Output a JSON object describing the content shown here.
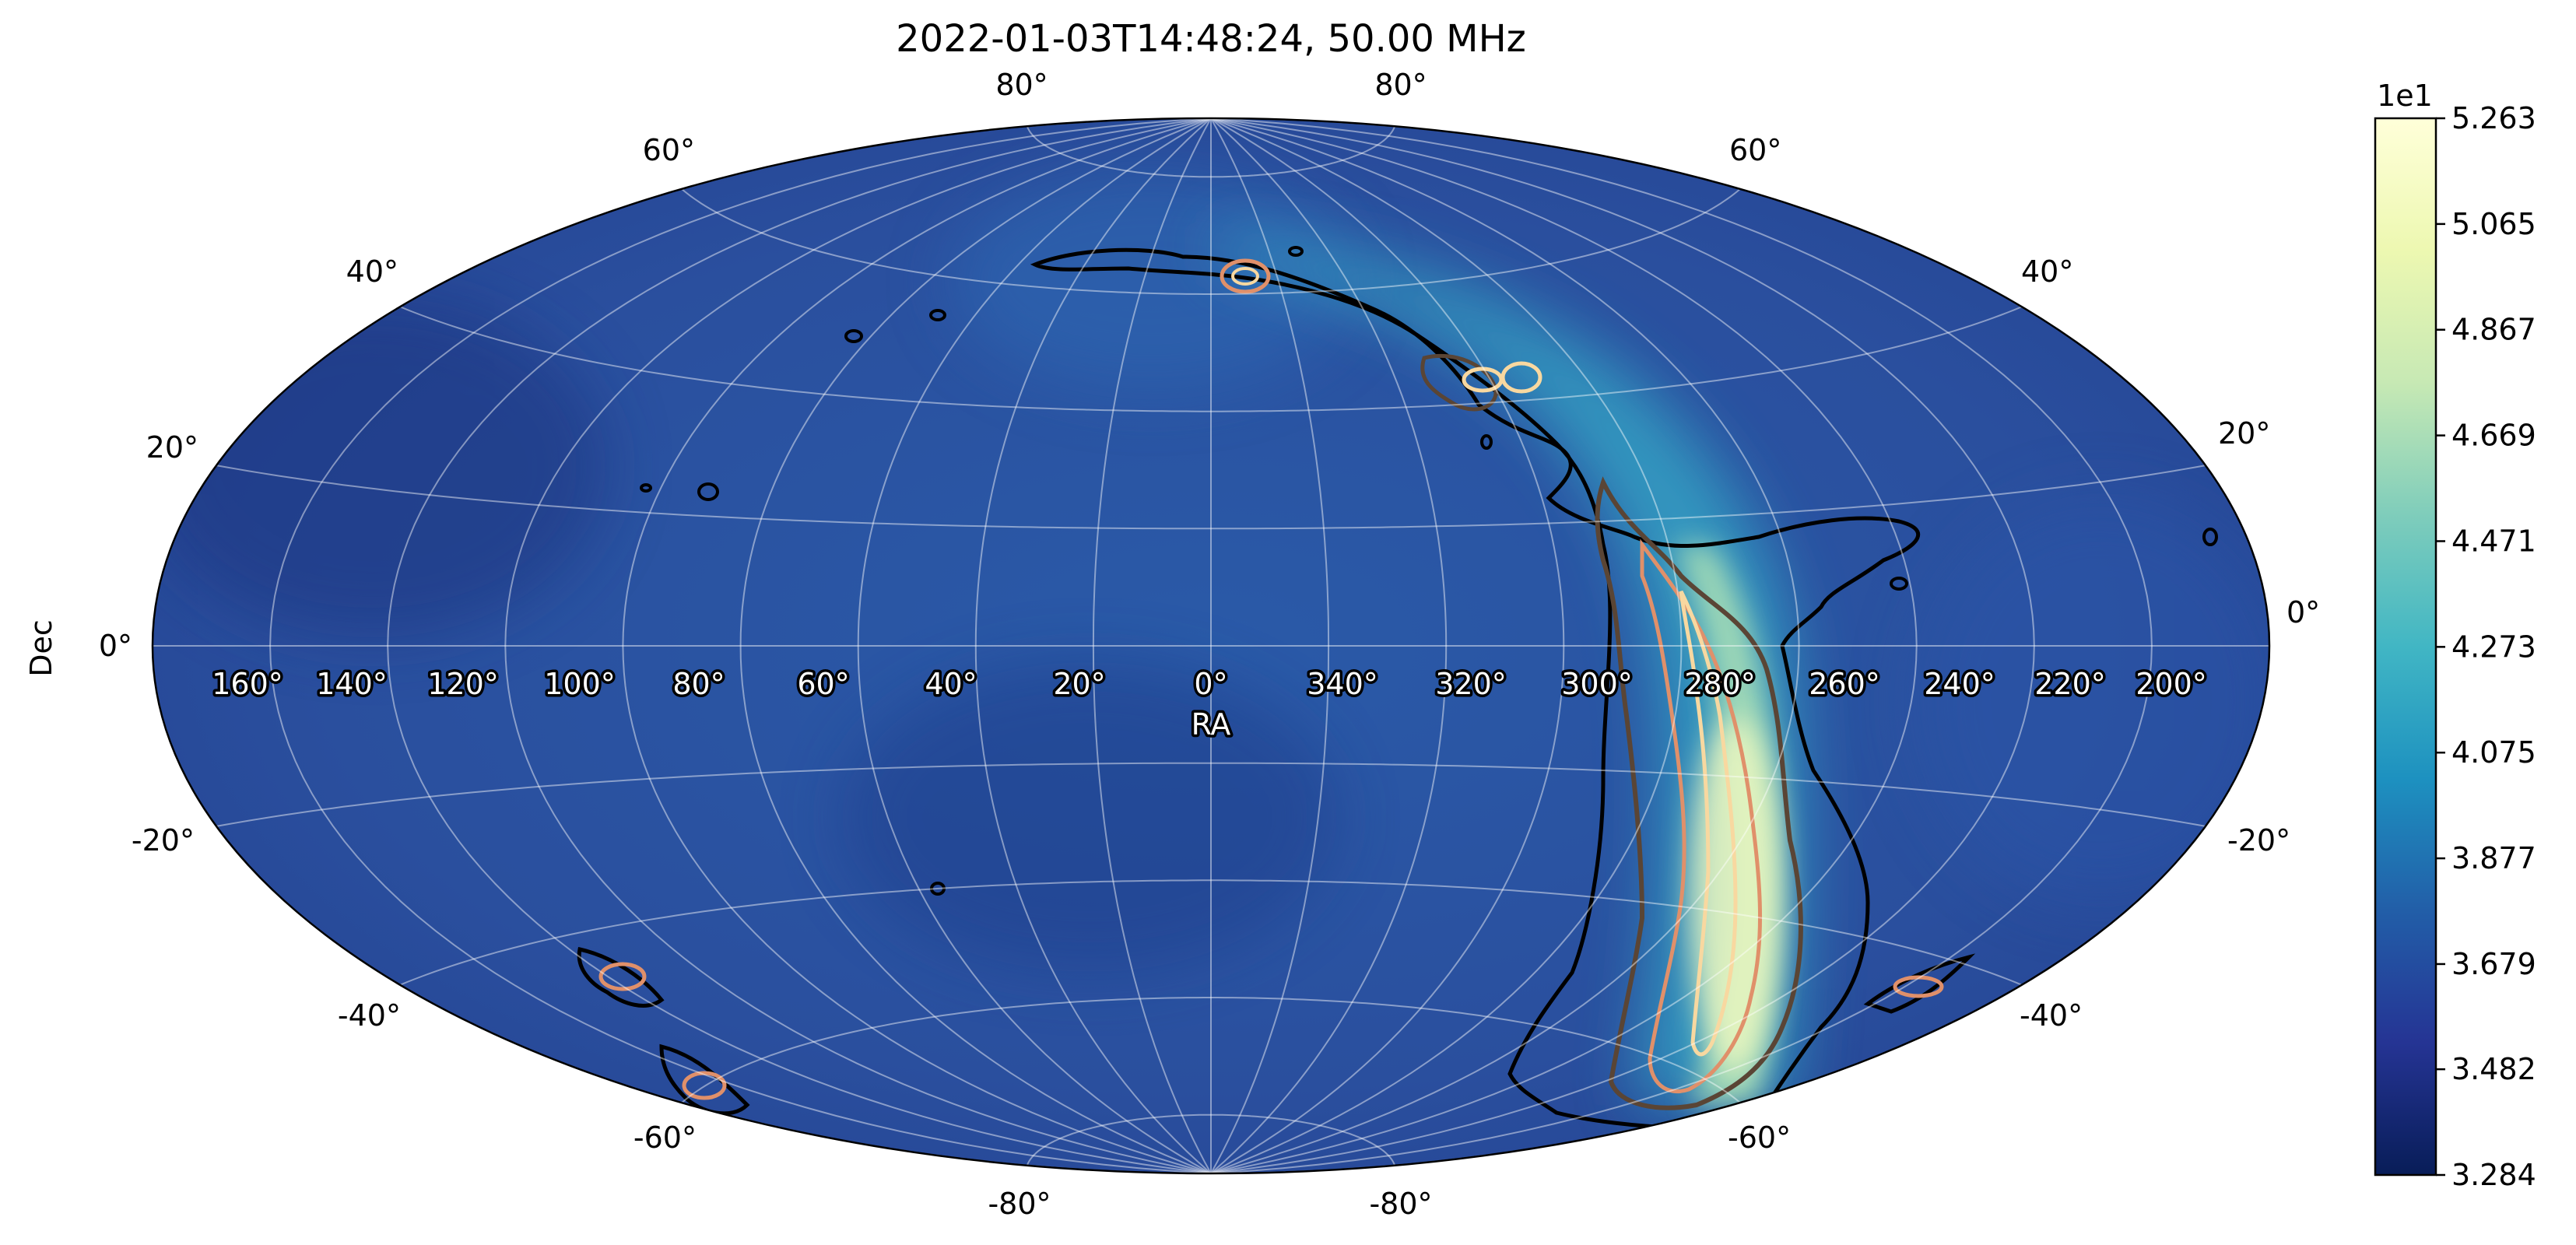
{
  "chart_data": {
    "type": "heatmap",
    "projection": "aitoff",
    "title": "2022-01-03T14:48:24, 50.00 MHz",
    "xlabel": "RA",
    "ylabel": "Dec",
    "ra_ticks": [
      "160°",
      "140°",
      "120°",
      "100°",
      "80°",
      "60°",
      "40°",
      "20°",
      "0°",
      "340°",
      "320°",
      "300°",
      "280°",
      "260°",
      "240°",
      "220°",
      "200°"
    ],
    "dec_ticks_left": [
      "-60°",
      "-40°",
      "-20°",
      "0°",
      "20°",
      "40°",
      "60°"
    ],
    "dec_ticks_right": [
      "-60°",
      "-40°",
      "-20°",
      "0°",
      "20°",
      "40°",
      "60°"
    ],
    "dec_ticks_pole_top": [
      "80°",
      "80°"
    ],
    "dec_ticks_pole_bottom": [
      "-80°",
      "-80°"
    ],
    "grid": true,
    "colormap": "YlGnBu_r",
    "colorbar": {
      "multiplier": "1e1",
      "ticks": [
        "5.263",
        "5.065",
        "4.867",
        "4.669",
        "4.471",
        "4.273",
        "4.075",
        "3.877",
        "3.679",
        "3.482",
        "3.284"
      ],
      "min": 3.284,
      "max": 5.263
    },
    "contour_colors": [
      "#000000",
      "#5a4535",
      "#e0906a",
      "#f8d8a0"
    ]
  }
}
